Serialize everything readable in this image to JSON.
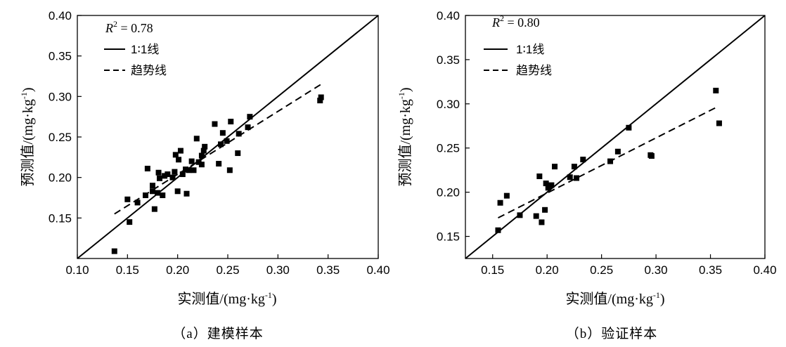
{
  "chart_data": [
    {
      "type": "scatter",
      "caption": "（a）建模样本",
      "r2_label": "R",
      "r2_sup": "2",
      "r2_value": " = 0.78",
      "xlabel": "实测值/(mg·kg",
      "ylabel": "预测值/(mg·kg",
      "unit_sup": "-1",
      "unit_close": ")",
      "xlim": [
        0.1,
        0.4
      ],
      "ylim": [
        0.1,
        0.4
      ],
      "xticks": [
        0.1,
        0.15,
        0.2,
        0.25,
        0.3,
        0.35,
        0.4
      ],
      "yticks": [
        0.15,
        0.2,
        0.25,
        0.3,
        0.35,
        0.4
      ],
      "xtick_labels": [
        "0.10",
        "0.15",
        "0.20",
        "0.25",
        "0.30",
        "0.35",
        "0.40"
      ],
      "ytick_labels": [
        "0.15",
        "0.20",
        "0.25",
        "0.30",
        "0.35",
        "0.40"
      ],
      "legend": {
        "placement": "top-left",
        "entries": [
          {
            "label": "1∶1线",
            "style": "solid"
          },
          {
            "label": "趋势线",
            "style": "dashed"
          }
        ]
      },
      "one_to_one": [
        [
          0.1,
          0.1
        ],
        [
          0.4,
          0.4
        ]
      ],
      "trend_line": [
        [
          0.137,
          0.155
        ],
        [
          0.343,
          0.315
        ]
      ],
      "points": [
        [
          0.137,
          0.109
        ],
        [
          0.15,
          0.173
        ],
        [
          0.152,
          0.145
        ],
        [
          0.16,
          0.169
        ],
        [
          0.168,
          0.178
        ],
        [
          0.17,
          0.211
        ],
        [
          0.175,
          0.183
        ],
        [
          0.175,
          0.19
        ],
        [
          0.177,
          0.161
        ],
        [
          0.18,
          0.181
        ],
        [
          0.181,
          0.206
        ],
        [
          0.182,
          0.199
        ],
        [
          0.185,
          0.178
        ],
        [
          0.187,
          0.202
        ],
        [
          0.19,
          0.204
        ],
        [
          0.195,
          0.2
        ],
        [
          0.197,
          0.207
        ],
        [
          0.198,
          0.228
        ],
        [
          0.2,
          0.183
        ],
        [
          0.201,
          0.222
        ],
        [
          0.203,
          0.233
        ],
        [
          0.205,
          0.204
        ],
        [
          0.208,
          0.21
        ],
        [
          0.209,
          0.18
        ],
        [
          0.211,
          0.209
        ],
        [
          0.214,
          0.22
        ],
        [
          0.216,
          0.209
        ],
        [
          0.219,
          0.248
        ],
        [
          0.221,
          0.219
        ],
        [
          0.224,
          0.216
        ],
        [
          0.224,
          0.227
        ],
        [
          0.226,
          0.233
        ],
        [
          0.227,
          0.238
        ],
        [
          0.237,
          0.266
        ],
        [
          0.241,
          0.217
        ],
        [
          0.243,
          0.241
        ],
        [
          0.245,
          0.255
        ],
        [
          0.249,
          0.245
        ],
        [
          0.252,
          0.209
        ],
        [
          0.253,
          0.269
        ],
        [
          0.26,
          0.23
        ],
        [
          0.261,
          0.254
        ],
        [
          0.27,
          0.262
        ],
        [
          0.272,
          0.275
        ],
        [
          0.342,
          0.295
        ],
        [
          0.343,
          0.299
        ]
      ]
    },
    {
      "type": "scatter",
      "caption": "（b）验证样本",
      "r2_label": "R",
      "r2_sup": "2",
      "r2_value": " = 0.80",
      "xlabel": "实测值/(mg·kg",
      "ylabel": "预测值/(mg·kg",
      "unit_sup": "-1",
      "unit_close": ")",
      "xlim": [
        0.125,
        0.4
      ],
      "ylim": [
        0.125,
        0.4
      ],
      "xticks": [
        0.15,
        0.2,
        0.25,
        0.3,
        0.35,
        0.4
      ],
      "yticks": [
        0.15,
        0.2,
        0.25,
        0.3,
        0.35,
        0.4
      ],
      "xtick_labels": [
        "0.15",
        "0.20",
        "0.25",
        "0.30",
        "0.35",
        "0.40"
      ],
      "ytick_labels": [
        "0.15",
        "0.20",
        "0.25",
        "0.30",
        "0.35",
        "0.40"
      ],
      "legend": {
        "placement": "top-left",
        "entries": [
          {
            "label": "1∶1线",
            "style": "solid"
          },
          {
            "label": "趋势线",
            "style": "dashed"
          }
        ]
      },
      "one_to_one": [
        [
          0.125,
          0.125
        ],
        [
          0.4,
          0.4
        ]
      ],
      "trend_line": [
        [
          0.155,
          0.171
        ],
        [
          0.357,
          0.297
        ]
      ],
      "points": [
        [
          0.155,
          0.157
        ],
        [
          0.157,
          0.188
        ],
        [
          0.163,
          0.196
        ],
        [
          0.175,
          0.174
        ],
        [
          0.19,
          0.173
        ],
        [
          0.193,
          0.218
        ],
        [
          0.195,
          0.166
        ],
        [
          0.198,
          0.18
        ],
        [
          0.199,
          0.21
        ],
        [
          0.201,
          0.205
        ],
        [
          0.204,
          0.208
        ],
        [
          0.207,
          0.229
        ],
        [
          0.221,
          0.217
        ],
        [
          0.225,
          0.229
        ],
        [
          0.227,
          0.216
        ],
        [
          0.233,
          0.237
        ],
        [
          0.258,
          0.235
        ],
        [
          0.265,
          0.246
        ],
        [
          0.275,
          0.273
        ],
        [
          0.295,
          0.242
        ],
        [
          0.296,
          0.241
        ],
        [
          0.355,
          0.315
        ],
        [
          0.358,
          0.278
        ]
      ]
    }
  ]
}
